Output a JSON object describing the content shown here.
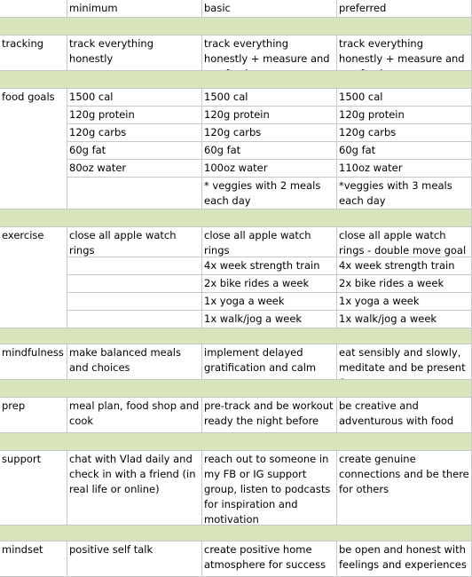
{
  "header": [
    "minimum",
    "basic",
    "preferred"
  ],
  "sections": [
    {
      "label": "tracking",
      "rows": [
        [
          "track everything honestly",
          "track everything honestly + measure and use food",
          "track everything honestly + measure and use food"
        ]
      ]
    },
    {
      "label": "food goals",
      "rows": [
        [
          "1500 cal",
          "1500 cal",
          "1500 cal"
        ],
        [
          "120g protein",
          "120g protein",
          "120g protein"
        ],
        [
          "120g carbs",
          "120g carbs",
          "120g carbs"
        ],
        [
          "60g fat",
          "60g fat",
          "60g fat"
        ],
        [
          "80oz water",
          "100oz water",
          "110oz water"
        ],
        [
          null,
          "* veggies with 2 meals each day",
          "*veggies with 3 meals each day"
        ]
      ]
    },
    {
      "label": "exercise",
      "rows": [
        [
          "close all apple watch rings",
          "close all apple watch rings",
          "close all apple watch rings - double move goal"
        ],
        [
          null,
          "4x week strength train",
          "4x week strength train"
        ],
        [
          null,
          "2x bike rides a week",
          "2x bike rides a week"
        ],
        [
          null,
          "1x yoga a week",
          "1x yoga a week"
        ],
        [
          null,
          "1x walk/jog a week",
          "1x walk/jog a week"
        ]
      ]
    },
    {
      "label": "mindfulness",
      "rows": [
        [
          "make balanced meals and choices",
          "implement delayed gratification and calm",
          "eat sensibly and slowly, meditate and be present &"
        ]
      ]
    },
    {
      "label": "prep",
      "rows": [
        [
          "meal plan, food shop and cook",
          "pre-track and be workout ready the night before",
          "be creative and adventurous with food"
        ]
      ]
    },
    {
      "label": "support",
      "rows": [
        [
          "chat with Vlad daily and check in with a friend (in real life or online)",
          "reach out to someone in my FB or IG support group, listen to podcasts for inspiration and motivation",
          "create genuine connections and be there for others"
        ]
      ]
    },
    {
      "label": "mindset",
      "rows": [
        [
          "positive self talk",
          "create positive home atmosphere for success",
          "be open and honest with feelings and experiences"
        ]
      ]
    }
  ]
}
